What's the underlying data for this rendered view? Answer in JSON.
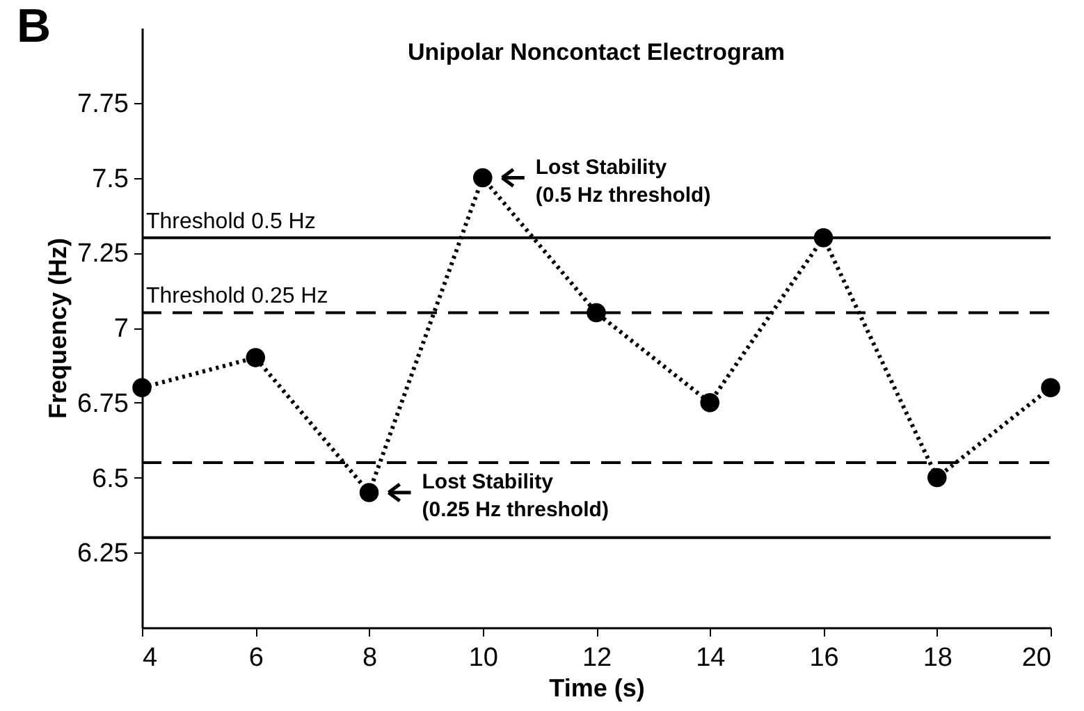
{
  "chart_data": {
    "type": "line",
    "title": "Unipolar Noncontact Electrogram",
    "xlabel": "Time (s)",
    "ylabel": "Frequency (Hz)",
    "x": [
      4,
      6,
      8,
      10,
      12,
      14,
      16,
      18,
      20
    ],
    "series": [
      {
        "color": "#000000",
        "values": [
          6.8,
          6.9,
          6.45,
          7.5,
          7.05,
          6.75,
          7.3,
          6.5,
          6.8
        ]
      }
    ],
    "xlim": [
      4,
      20
    ],
    "xticks": [
      4,
      6,
      8,
      10,
      12,
      14,
      16,
      18,
      20
    ],
    "ylim": [
      6,
      8
    ],
    "yticks": [
      6.25,
      6.5,
      6.75,
      7,
      7.25,
      7.5,
      7.75
    ],
    "marker": "circle",
    "line_style": "dotted",
    "grid": false,
    "ref_lines": [
      {
        "axis": "y",
        "value": 7.3,
        "label": "Threshold 0.5 Hz",
        "color": "#000000",
        "line_style": "solid"
      },
      {
        "axis": "y",
        "value": 7.05,
        "label": "Threshold 0.25 Hz",
        "color": "#000000",
        "line_style": "dashed"
      },
      {
        "axis": "y",
        "value": 6.55,
        "color": "#000000",
        "line_style": "dashed"
      },
      {
        "axis": "y",
        "value": 6.3,
        "color": "#000000",
        "line_style": "solid"
      }
    ],
    "annotations": [
      "B",
      {
        "text": "Lost Stability\n(0.5 Hz threshold)",
        "x": 10,
        "y": 7.5
      },
      {
        "text": "Lost Stability\n(0.25 Hz threshold)",
        "x": 8,
        "y": 6.45
      }
    ]
  }
}
